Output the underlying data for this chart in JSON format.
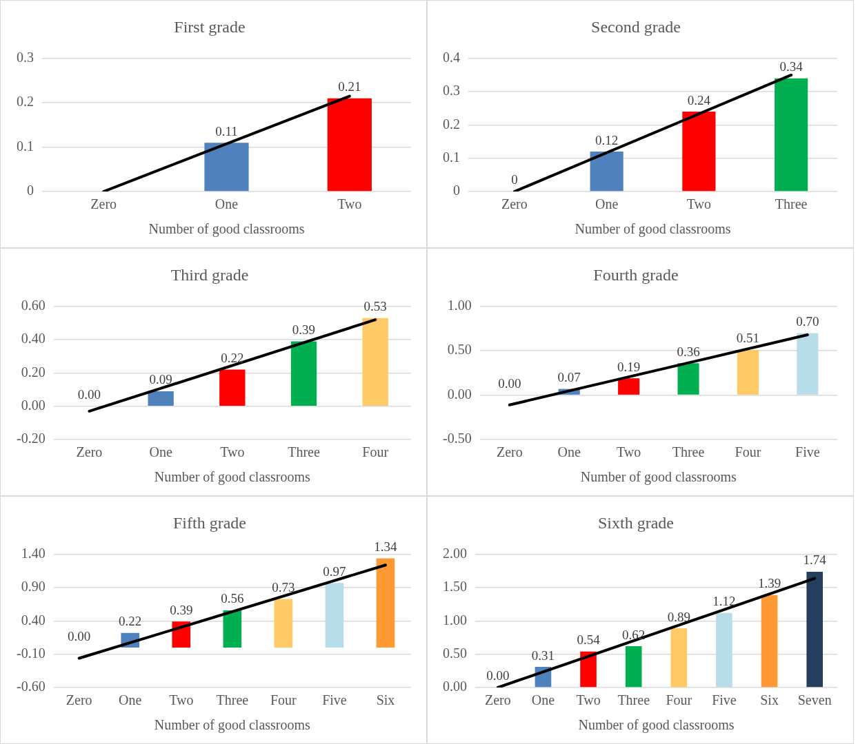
{
  "chart_data": [
    {
      "type": "bar",
      "title": "First grade",
      "xlabel": "Number of good classrooms",
      "categories": [
        "Zero",
        "One",
        "Two"
      ],
      "ylim": [
        0,
        0.3
      ],
      "yticks": [
        0,
        0.1,
        0.2,
        0.3
      ],
      "grid": "y",
      "legend": false,
      "series": [
        {
          "colors": [
            "#4f81bd",
            "#4f81bd",
            "#ff0000"
          ],
          "values": [
            null,
            0.11,
            0.21
          ],
          "value_labels": [
            null,
            "0.11",
            "0.21"
          ]
        },
        {
          "type": "line",
          "color": "#000000",
          "values": [
            0,
            null,
            0.215
          ]
        }
      ]
    },
    {
      "type": "bar",
      "title": "Second grade",
      "xlabel": "Number of good classrooms",
      "categories": [
        "Zero",
        "One",
        "Two",
        "Three"
      ],
      "ylim": [
        0,
        0.4
      ],
      "yticks": [
        0,
        0.1,
        0.2,
        0.3,
        0.4
      ],
      "grid": "y",
      "legend": false,
      "series": [
        {
          "colors": [
            "#4f81bd",
            "#4f81bd",
            "#ff0000",
            "#00b050"
          ],
          "values": [
            0,
            0.12,
            0.24,
            0.34
          ],
          "value_labels": [
            "0",
            "0.12",
            "0.24",
            "0.34"
          ]
        },
        {
          "type": "line",
          "color": "#000000",
          "values": [
            0,
            null,
            null,
            0.35
          ]
        }
      ]
    },
    {
      "type": "bar",
      "title": "Third grade",
      "xlabel": "Number of good classrooms",
      "categories": [
        "Zero",
        "One",
        "Two",
        "Three",
        "Four"
      ],
      "ylim": [
        -0.2,
        0.6
      ],
      "yticks": [
        {
          "value": -0.2,
          "label": "-0.20"
        },
        {
          "value": 0,
          "label": "0.00"
        },
        {
          "value": 0.2,
          "label": "0.20"
        },
        {
          "value": 0.4,
          "label": "0.40"
        },
        {
          "value": 0.6,
          "label": "0.60"
        }
      ],
      "grid": "y",
      "legend": false,
      "series": [
        {
          "colors": [
            "#4f81bd",
            "#4f81bd",
            "#ff0000",
            "#00b050",
            "#ffc966"
          ],
          "values": [
            0,
            0.09,
            0.22,
            0.39,
            0.53
          ],
          "value_labels": [
            "0.00",
            "0.09",
            "0.22",
            "0.39",
            "0.53"
          ]
        },
        {
          "type": "line",
          "color": "#000000",
          "values": [
            -0.03,
            null,
            null,
            null,
            0.52
          ]
        }
      ]
    },
    {
      "type": "bar",
      "title": "Fourth grade",
      "xlabel": "Number of good classrooms",
      "categories": [
        "Zero",
        "One",
        "Two",
        "Three",
        "Four",
        "Five"
      ],
      "ylim": [
        -0.5,
        1.0
      ],
      "yticks": [
        {
          "value": -0.5,
          "label": "-0.50"
        },
        {
          "value": 0,
          "label": "0.00"
        },
        {
          "value": 0.5,
          "label": "0.50"
        },
        {
          "value": 1.0,
          "label": "1.00"
        }
      ],
      "grid": "y",
      "legend": false,
      "series": [
        {
          "colors": [
            "#4f81bd",
            "#4f81bd",
            "#ff0000",
            "#00b050",
            "#ffc966",
            "#b7dde8"
          ],
          "values": [
            0,
            0.07,
            0.19,
            0.36,
            0.51,
            0.7
          ],
          "value_labels": [
            "0.00",
            "0.07",
            "0.19",
            "0.36",
            "0.51",
            "0.70"
          ]
        },
        {
          "type": "line",
          "color": "#000000",
          "values": [
            -0.11,
            null,
            null,
            null,
            null,
            0.68
          ]
        }
      ]
    },
    {
      "type": "bar",
      "title": "Fifth grade",
      "xlabel": "Number of good classrooms",
      "categories": [
        "Zero",
        "One",
        "Two",
        "Three",
        "Four",
        "Five",
        "Six"
      ],
      "ylim": [
        -0.6,
        1.4
      ],
      "yticks": [
        {
          "value": -0.6,
          "label": "-0.60"
        },
        {
          "value": -0.1,
          "label": "-0.10"
        },
        {
          "value": 0.4,
          "label": "0.40"
        },
        {
          "value": 0.9,
          "label": "0.90"
        },
        {
          "value": 1.4,
          "label": "1.40"
        }
      ],
      "grid": "y",
      "legend": false,
      "series": [
        {
          "colors": [
            "#4f81bd",
            "#4f81bd",
            "#ff0000",
            "#00b050",
            "#ffc966",
            "#b7dde8",
            "#ff9933"
          ],
          "values": [
            0,
            0.22,
            0.39,
            0.56,
            0.73,
            0.97,
            1.34
          ],
          "value_labels": [
            "0.00",
            "0.22",
            "0.39",
            "0.56",
            "0.73",
            "0.97",
            "1.34"
          ]
        },
        {
          "type": "line",
          "color": "#000000",
          "values": [
            -0.16,
            null,
            null,
            null,
            null,
            null,
            1.24
          ]
        }
      ]
    },
    {
      "type": "bar",
      "title": "Sixth grade",
      "xlabel": "Number of good classrooms",
      "categories": [
        "Zero",
        "One",
        "Two",
        "Three",
        "Four",
        "Five",
        "Six",
        "Seven"
      ],
      "ylim": [
        0,
        2.0
      ],
      "yticks": [
        {
          "value": 0,
          "label": "0.00"
        },
        {
          "value": 0.5,
          "label": "0.50"
        },
        {
          "value": 1.0,
          "label": "1.00"
        },
        {
          "value": 1.5,
          "label": "1.50"
        },
        {
          "value": 2.0,
          "label": "2.00"
        }
      ],
      "grid": "y",
      "legend": false,
      "series": [
        {
          "colors": [
            "#4f81bd",
            "#4f81bd",
            "#ff0000",
            "#00b050",
            "#ffc966",
            "#b7dde8",
            "#ff9933",
            "#243f60"
          ],
          "values": [
            0,
            0.31,
            0.54,
            0.62,
            0.89,
            1.12,
            1.39,
            1.74
          ],
          "value_labels": [
            "0.00",
            "0.31",
            "0.54",
            "0.62",
            "0.89",
            "1.12",
            "1.39",
            "1.74"
          ]
        },
        {
          "type": "line",
          "color": "#000000",
          "values": [
            0,
            null,
            null,
            null,
            null,
            null,
            null,
            1.64
          ]
        }
      ]
    }
  ]
}
